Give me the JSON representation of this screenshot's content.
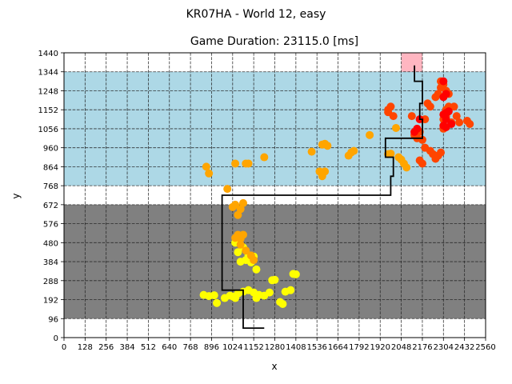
{
  "figure": {
    "suptitle": "KR07HA - World 12, easy"
  },
  "chart_data": {
    "type": "scatter",
    "title": "Game Duration: 23115.0 [ms]",
    "xlabel": "x",
    "ylabel": "y",
    "xlim": [
      0,
      2560
    ],
    "ylim": [
      0,
      1440
    ],
    "xticks": [
      0,
      128,
      256,
      384,
      512,
      640,
      768,
      896,
      1024,
      1152,
      1280,
      1408,
      1536,
      1664,
      1792,
      1920,
      2048,
      2176,
      2304,
      2432,
      2560
    ],
    "xtick_labels": [
      "0",
      "128",
      "256",
      "384",
      "512",
      "640",
      "768",
      "896",
      "1024",
      "1152",
      "1280",
      "1408",
      "1536",
      "1664",
      "1792",
      "1920",
      "2048",
      "2176",
      "2304",
      "2432",
      "2560"
    ],
    "yticks": [
      0,
      96,
      192,
      288,
      384,
      480,
      576,
      672,
      768,
      864,
      960,
      1056,
      1152,
      1248,
      1344,
      1440
    ],
    "ytick_labels": [
      "0",
      "96",
      "192",
      "288",
      "384",
      "480",
      "576",
      "672",
      "768",
      "864",
      "960",
      "1056",
      "1152",
      "1248",
      "1344",
      "1440"
    ],
    "grid": true,
    "grid_style": "dashed",
    "regions": [
      {
        "x0": 0,
        "x1": 2560,
        "y0": 96,
        "y1": 672,
        "color": "#808080"
      },
      {
        "x0": 0,
        "x1": 2560,
        "y0": 768,
        "y1": 1344,
        "color": "#add8e6"
      },
      {
        "x0": 2048,
        "x1": 2176,
        "y0": 1344,
        "y1": 1440,
        "color": "#ffb6c1"
      }
    ],
    "path": [
      [
        1088,
        48
      ],
      [
        1216,
        48
      ],
      [
        1088,
        48
      ],
      [
        1088,
        240
      ],
      [
        960,
        240
      ],
      [
        960,
        720
      ],
      [
        1984,
        720
      ],
      [
        1984,
        816
      ],
      [
        2000,
        816
      ],
      [
        2000,
        912
      ],
      [
        1952,
        912
      ],
      [
        1952,
        1008
      ],
      [
        2176,
        1008
      ],
      [
        2176,
        1104
      ],
      [
        2160,
        1104
      ],
      [
        2160,
        1184
      ],
      [
        2176,
        1184
      ],
      [
        2176,
        1296
      ],
      [
        2128,
        1296
      ],
      [
        2128,
        1376
      ]
    ],
    "path_color": "#000000",
    "series": [
      {
        "color": "#ffff00",
        "points": [
          [
            848,
            216
          ],
          [
            880,
            210
          ],
          [
            912,
            214
          ],
          [
            928,
            175
          ],
          [
            976,
            200
          ],
          [
            1008,
            212
          ],
          [
            1024,
            208
          ],
          [
            1040,
            200
          ],
          [
            1056,
            222
          ],
          [
            1088,
            232
          ],
          [
            1120,
            240
          ],
          [
            1152,
            228
          ],
          [
            1168,
            200
          ],
          [
            1184,
            216
          ],
          [
            1216,
            212
          ],
          [
            1248,
            228
          ],
          [
            1264,
            290
          ],
          [
            1280,
            292
          ],
          [
            1312,
            180
          ],
          [
            1328,
            170
          ],
          [
            1344,
            232
          ],
          [
            1376,
            240
          ],
          [
            1392,
            322
          ],
          [
            1408,
            320
          ],
          [
            1072,
            384
          ],
          [
            1104,
            392
          ],
          [
            1136,
            380
          ],
          [
            1152,
            410
          ],
          [
            1168,
            345
          ],
          [
            1120,
            416
          ],
          [
            1056,
            432
          ],
          [
            1040,
            480
          ],
          [
            1088,
            456
          ]
        ]
      },
      {
        "color": "#ffa500",
        "points": [
          [
            1056,
            520
          ],
          [
            1072,
            500
          ],
          [
            1088,
            520
          ],
          [
            1040,
            504
          ],
          [
            1072,
            470
          ],
          [
            1104,
            440
          ],
          [
            1136,
            415
          ],
          [
            1152,
            392
          ],
          [
            1056,
            620
          ],
          [
            1072,
            650
          ],
          [
            1040,
            672
          ],
          [
            1088,
            680
          ],
          [
            1024,
            660
          ],
          [
            992,
            752
          ],
          [
            1040,
            880
          ],
          [
            1104,
            880
          ],
          [
            1120,
            880
          ],
          [
            1216,
            912
          ],
          [
            864,
            864
          ],
          [
            880,
            830
          ],
          [
            1504,
            940
          ],
          [
            1568,
            976
          ],
          [
            1584,
            980
          ],
          [
            1600,
            970
          ],
          [
            1584,
            840
          ],
          [
            1552,
            840
          ],
          [
            1568,
            816
          ],
          [
            1728,
            920
          ],
          [
            1744,
            936
          ],
          [
            1760,
            944
          ],
          [
            1856,
            1024
          ],
          [
            2032,
            912
          ],
          [
            2048,
            900
          ],
          [
            2064,
            880
          ],
          [
            2080,
            860
          ],
          [
            2016,
            1060
          ],
          [
            1968,
            928
          ],
          [
            1984,
            930
          ]
        ]
      },
      {
        "color": "#ff4500",
        "points": [
          [
            1968,
            1152
          ],
          [
            1984,
            1168
          ],
          [
            1968,
            1140
          ],
          [
            2000,
            1120
          ],
          [
            2112,
            1120
          ],
          [
            2128,
            1024
          ],
          [
            2144,
            1008
          ],
          [
            2160,
            1040
          ],
          [
            2176,
            1000
          ],
          [
            2192,
            960
          ],
          [
            2224,
            944
          ],
          [
            2240,
            928
          ],
          [
            2256,
            904
          ],
          [
            2272,
            920
          ],
          [
            2288,
            936
          ],
          [
            2160,
            896
          ],
          [
            2176,
            880
          ],
          [
            2192,
            1104
          ],
          [
            2224,
            1168
          ],
          [
            2208,
            1184
          ],
          [
            2256,
            1216
          ],
          [
            2272,
            1232
          ],
          [
            2320,
            1152
          ],
          [
            2336,
            1168
          ],
          [
            2368,
            1168
          ],
          [
            2384,
            1120
          ],
          [
            2400,
            1088
          ],
          [
            2448,
            1096
          ],
          [
            2464,
            1080
          ],
          [
            2352,
            1088
          ],
          [
            2304,
            1056
          ],
          [
            2304,
            1104
          ],
          [
            2320,
            1120
          ],
          [
            2288,
            1296
          ],
          [
            2304,
            1280
          ],
          [
            2320,
            1248
          ],
          [
            2336,
            1232
          ],
          [
            2288,
            1264
          ]
        ]
      },
      {
        "color": "#ff0000",
        "points": [
          [
            2128,
            1040
          ],
          [
            2144,
            1056
          ],
          [
            2160,
            1104
          ],
          [
            2304,
            1128
          ],
          [
            2320,
            1136
          ],
          [
            2336,
            1144
          ],
          [
            2320,
            1104
          ],
          [
            2304,
            1072
          ],
          [
            2320,
            1064
          ],
          [
            2352,
            1080
          ],
          [
            2304,
            1296
          ],
          [
            2320,
            1232
          ],
          [
            2304,
            1216
          ]
        ]
      }
    ]
  }
}
